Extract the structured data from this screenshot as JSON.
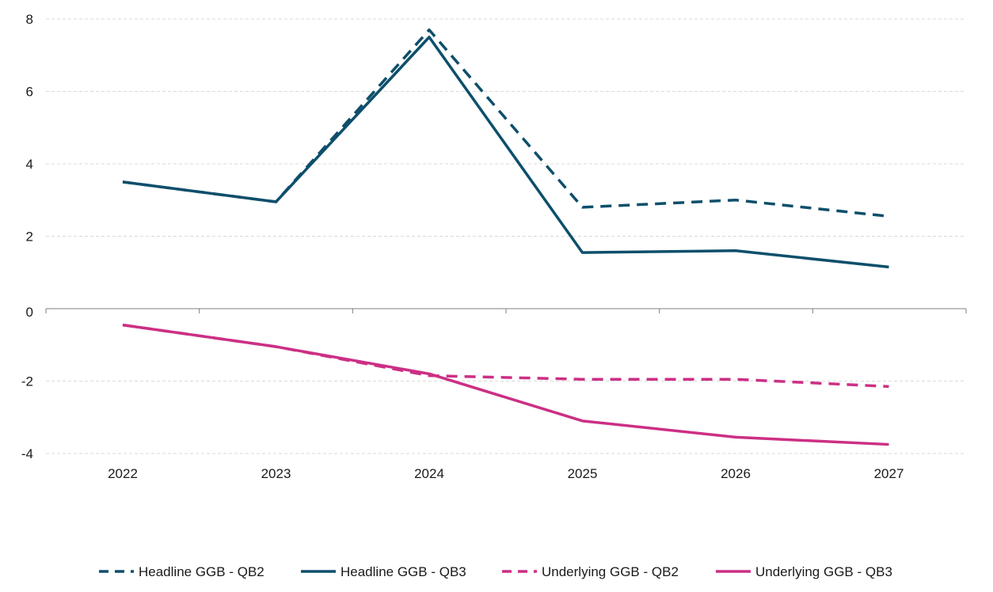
{
  "chart_data": {
    "type": "line",
    "title": "",
    "xlabel": "",
    "ylabel": "",
    "categories": [
      "2022",
      "2023",
      "2024",
      "2025",
      "2026",
      "2027"
    ],
    "ylim": [
      -4,
      8
    ],
    "yticks": [
      -4,
      -2,
      0,
      2,
      4,
      6,
      8
    ],
    "grid": true,
    "legend_position": "bottom",
    "series": [
      {
        "name": "Headline GGB - QB2",
        "color": "#0d4f6b",
        "style": "dashed",
        "values": [
          3.5,
          2.95,
          7.7,
          2.8,
          3.0,
          2.55
        ]
      },
      {
        "name": "Headline GGB - QB3",
        "color": "#0d4f6b",
        "style": "solid",
        "values": [
          3.5,
          2.95,
          7.5,
          1.55,
          1.6,
          1.15
        ]
      },
      {
        "name": "Underlying GGB - QB2",
        "color": "#cc2f84",
        "style": "dashed",
        "values": [
          -0.45,
          -1.05,
          -1.85,
          -1.95,
          -1.95,
          -2.15
        ]
      },
      {
        "name": "Underlying GGB - QB3",
        "color": "#cc2f84",
        "style": "solid",
        "values": [
          -0.45,
          -1.05,
          -1.8,
          -3.1,
          -3.55,
          -3.75
        ]
      }
    ]
  }
}
